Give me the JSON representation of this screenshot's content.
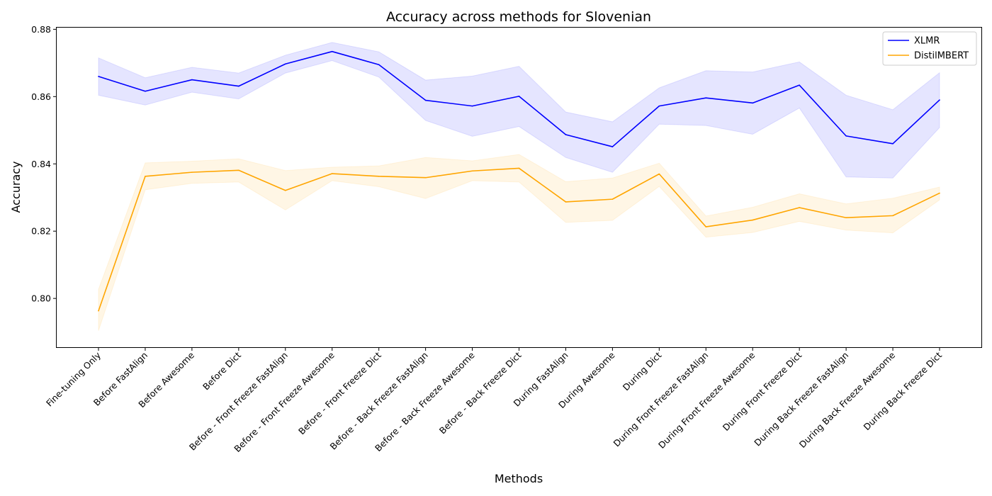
{
  "chart_data": {
    "type": "line",
    "title": "Accuracy across methods for Slovenian",
    "xlabel": "Methods",
    "ylabel": "Accuracy",
    "categories": [
      "Fine-tuning Only",
      "Before FastAlign",
      "Before Awesome",
      "Before Dict",
      "Before - Front Freeze FastAlign",
      "Before - Front Freeze Awesome",
      "Before - Front Freeze Dict",
      "Before - Back Freeze FastAlign",
      "Before - Back Freeze Awesome",
      "Before - Back Freeze Dict",
      "During FastAlign",
      "During Awesome",
      "During Dict",
      "During Front Freeze FastAlign",
      "During Front Freeze Awesome",
      "During Front Freeze Dict",
      "During Back Freeze FastAlign",
      "During Back Freeze Awesome",
      "During Back Freeze Dict"
    ],
    "ylim": [
      0.7855,
      0.8805
    ],
    "yticks": [
      "0.80",
      "0.82",
      "0.84",
      "0.86",
      "0.88"
    ],
    "grid": false,
    "legend_position": "top-right",
    "series": [
      {
        "name": "XLMR",
        "color": "#0000ff",
        "band_color": "#0000ff",
        "values": [
          0.866,
          0.8616,
          0.865,
          0.8631,
          0.8697,
          0.8734,
          0.8695,
          0.8589,
          0.8572,
          0.8601,
          0.8487,
          0.8451,
          0.8572,
          0.8596,
          0.8581,
          0.8634,
          0.8483,
          0.846,
          0.859
        ],
        "lower": [
          0.8604,
          0.8575,
          0.8613,
          0.8593,
          0.867,
          0.8707,
          0.8658,
          0.8529,
          0.8482,
          0.8511,
          0.8419,
          0.8375,
          0.8518,
          0.8514,
          0.8488,
          0.8566,
          0.8361,
          0.8358,
          0.8508
        ],
        "upper": [
          0.8715,
          0.8656,
          0.8687,
          0.867,
          0.8723,
          0.8761,
          0.8733,
          0.8649,
          0.8661,
          0.869,
          0.8554,
          0.8525,
          0.8626,
          0.8677,
          0.8673,
          0.8703,
          0.8604,
          0.8561,
          0.8671
        ]
      },
      {
        "name": "DistilMBERT",
        "color": "#ffa500",
        "band_color": "#ffa500",
        "values": [
          0.7963,
          0.8363,
          0.8375,
          0.8381,
          0.8321,
          0.8371,
          0.8363,
          0.8359,
          0.8379,
          0.8387,
          0.8287,
          0.8295,
          0.837,
          0.8213,
          0.8233,
          0.827,
          0.824,
          0.8246,
          0.8313
        ],
        "lower": [
          0.7904,
          0.8323,
          0.8342,
          0.8346,
          0.8263,
          0.835,
          0.8332,
          0.8297,
          0.835,
          0.8346,
          0.8226,
          0.8232,
          0.8333,
          0.8182,
          0.8196,
          0.8229,
          0.8203,
          0.8195,
          0.8293
        ],
        "upper": [
          0.8027,
          0.8403,
          0.8408,
          0.8415,
          0.838,
          0.839,
          0.8394,
          0.8419,
          0.8409,
          0.8428,
          0.8347,
          0.8358,
          0.8402,
          0.8245,
          0.8271,
          0.8311,
          0.8281,
          0.8298,
          0.8331
        ]
      }
    ]
  }
}
